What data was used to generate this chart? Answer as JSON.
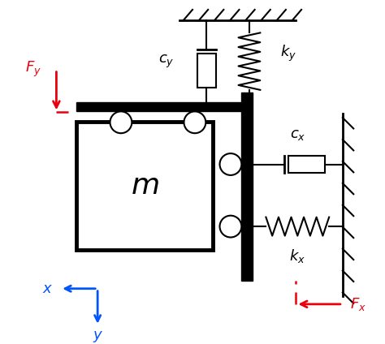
{
  "bg_color": "#ffffff",
  "black": "#000000",
  "red": "#e8000d",
  "blue": "#0055ff",
  "figsize": [
    4.74,
    4.24
  ],
  "dpi": 100
}
